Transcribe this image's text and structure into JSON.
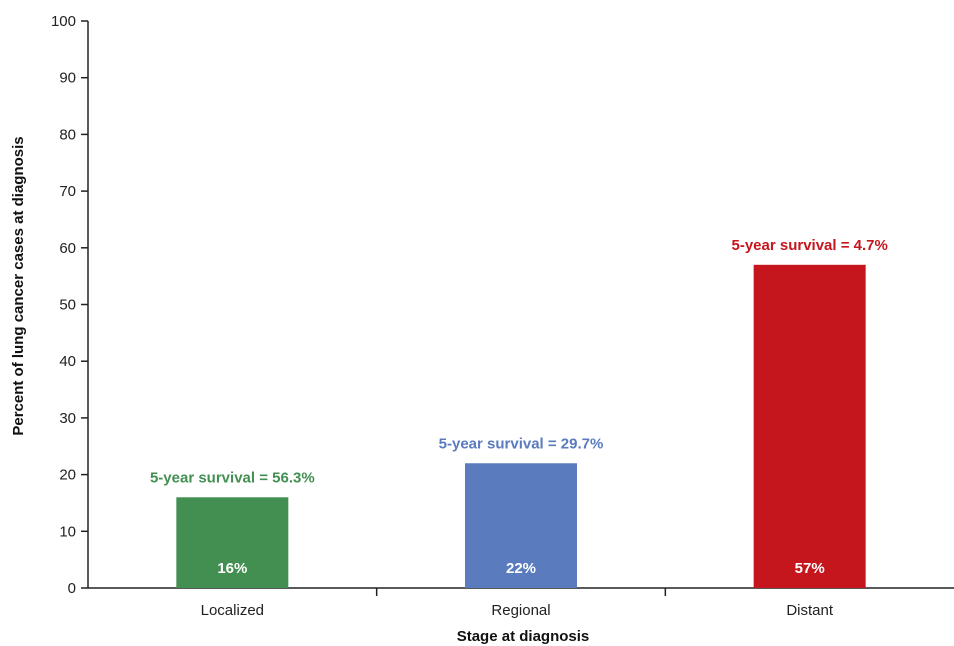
{
  "chart_data": {
    "type": "bar",
    "categories": [
      "Localized",
      "Regional",
      "Distant"
    ],
    "values": [
      16,
      22,
      57
    ],
    "value_labels": [
      "16%",
      "22%",
      "57%"
    ],
    "annotations": [
      "5-year survival = 56.3%",
      "5-year survival = 29.7%",
      "5-year survival = 4.7%"
    ],
    "colors": [
      "#438f52",
      "#5a7bbd",
      "#c5161d"
    ],
    "xlabel": "Stage at diagnosis",
    "ylabel": "Percent of lung cancer cases at diagnosis",
    "ylim": [
      0,
      100
    ],
    "yticks": [
      0,
      10,
      20,
      30,
      40,
      50,
      60,
      70,
      80,
      90,
      100
    ],
    "grid": false,
    "legend": "none"
  }
}
